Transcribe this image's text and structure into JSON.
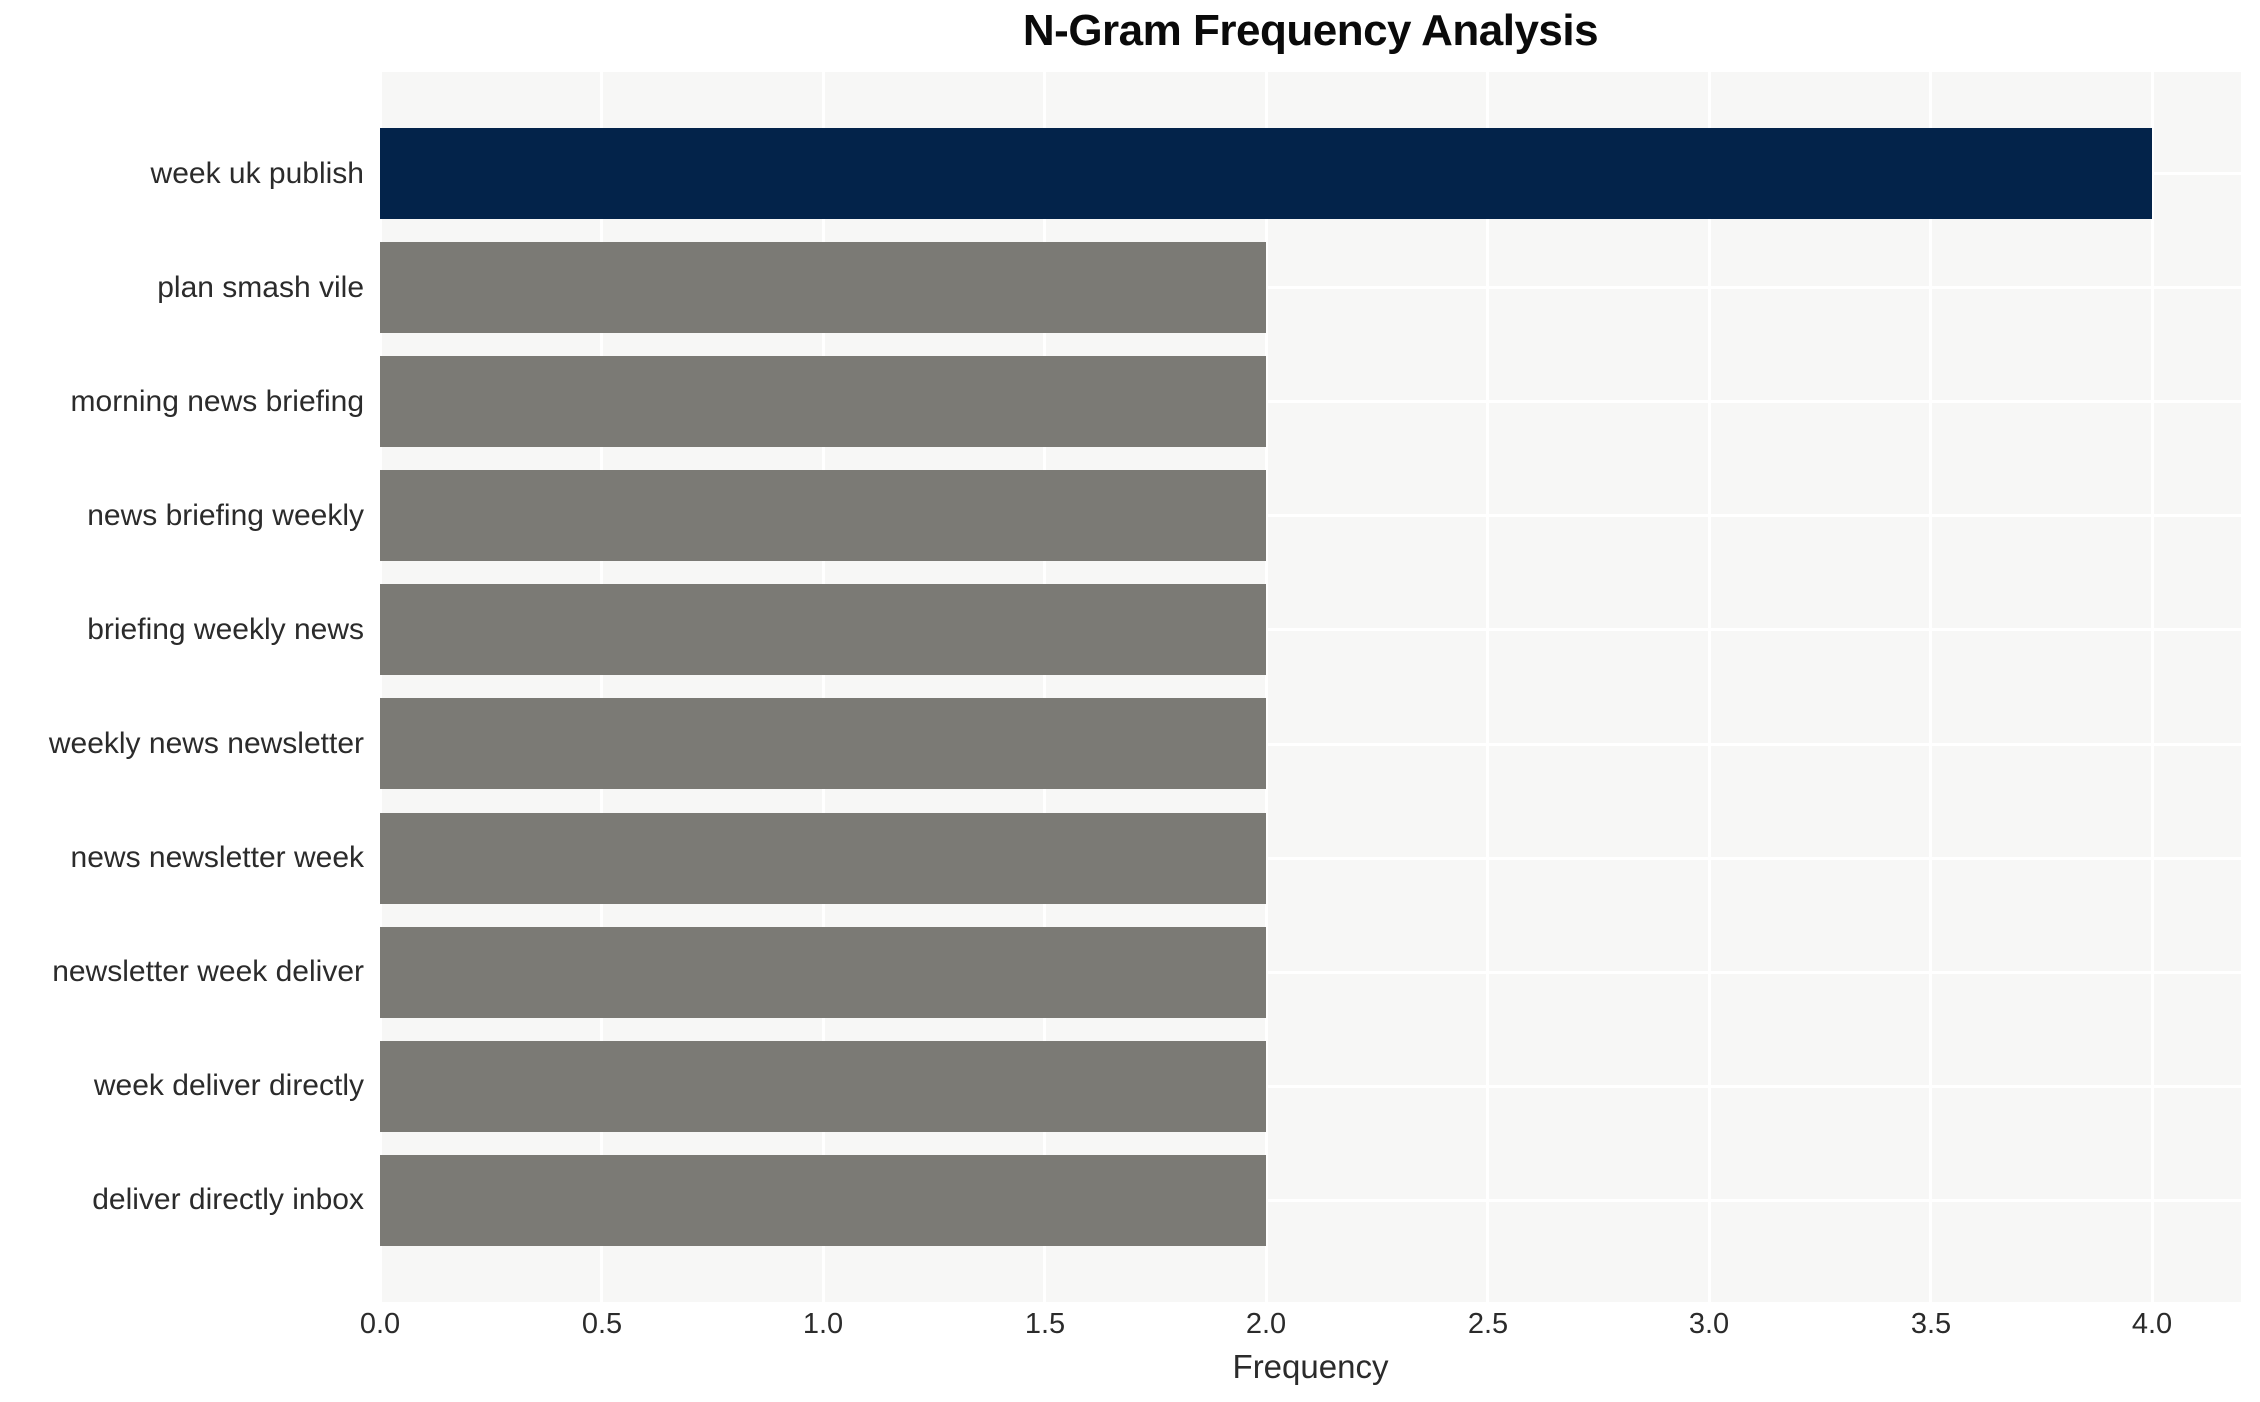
{
  "chart_data": {
    "type": "bar",
    "orientation": "horizontal",
    "title": "N-Gram Frequency Analysis",
    "xlabel": "Frequency",
    "categories": [
      "week uk publish",
      "plan smash vile",
      "morning news briefing",
      "news briefing weekly",
      "briefing weekly news",
      "weekly news newsletter",
      "news newsletter week",
      "newsletter week deliver",
      "week deliver directly",
      "deliver directly inbox"
    ],
    "values": [
      4,
      2,
      2,
      2,
      2,
      2,
      2,
      2,
      2,
      2
    ],
    "bar_colors": [
      "#03234a",
      "#7b7a75",
      "#7b7a75",
      "#7b7a75",
      "#7b7a75",
      "#7b7a75",
      "#7b7a75",
      "#7b7a75",
      "#7b7a75",
      "#7b7a75"
    ],
    "xlim": [
      0,
      4.2
    ],
    "xticks": [
      "0.0",
      "0.5",
      "1.0",
      "1.5",
      "2.0",
      "2.5",
      "3.0",
      "3.5",
      "4.0"
    ],
    "grid": true,
    "legend": null,
    "colors": {
      "bar_highlight": "#03234a",
      "bar_default": "#7b7a75",
      "plot_background": "#f7f7f6",
      "gridline": "#ffffff",
      "tick_text": "#2b2b2b",
      "title_text": "#0a0a0a"
    }
  }
}
